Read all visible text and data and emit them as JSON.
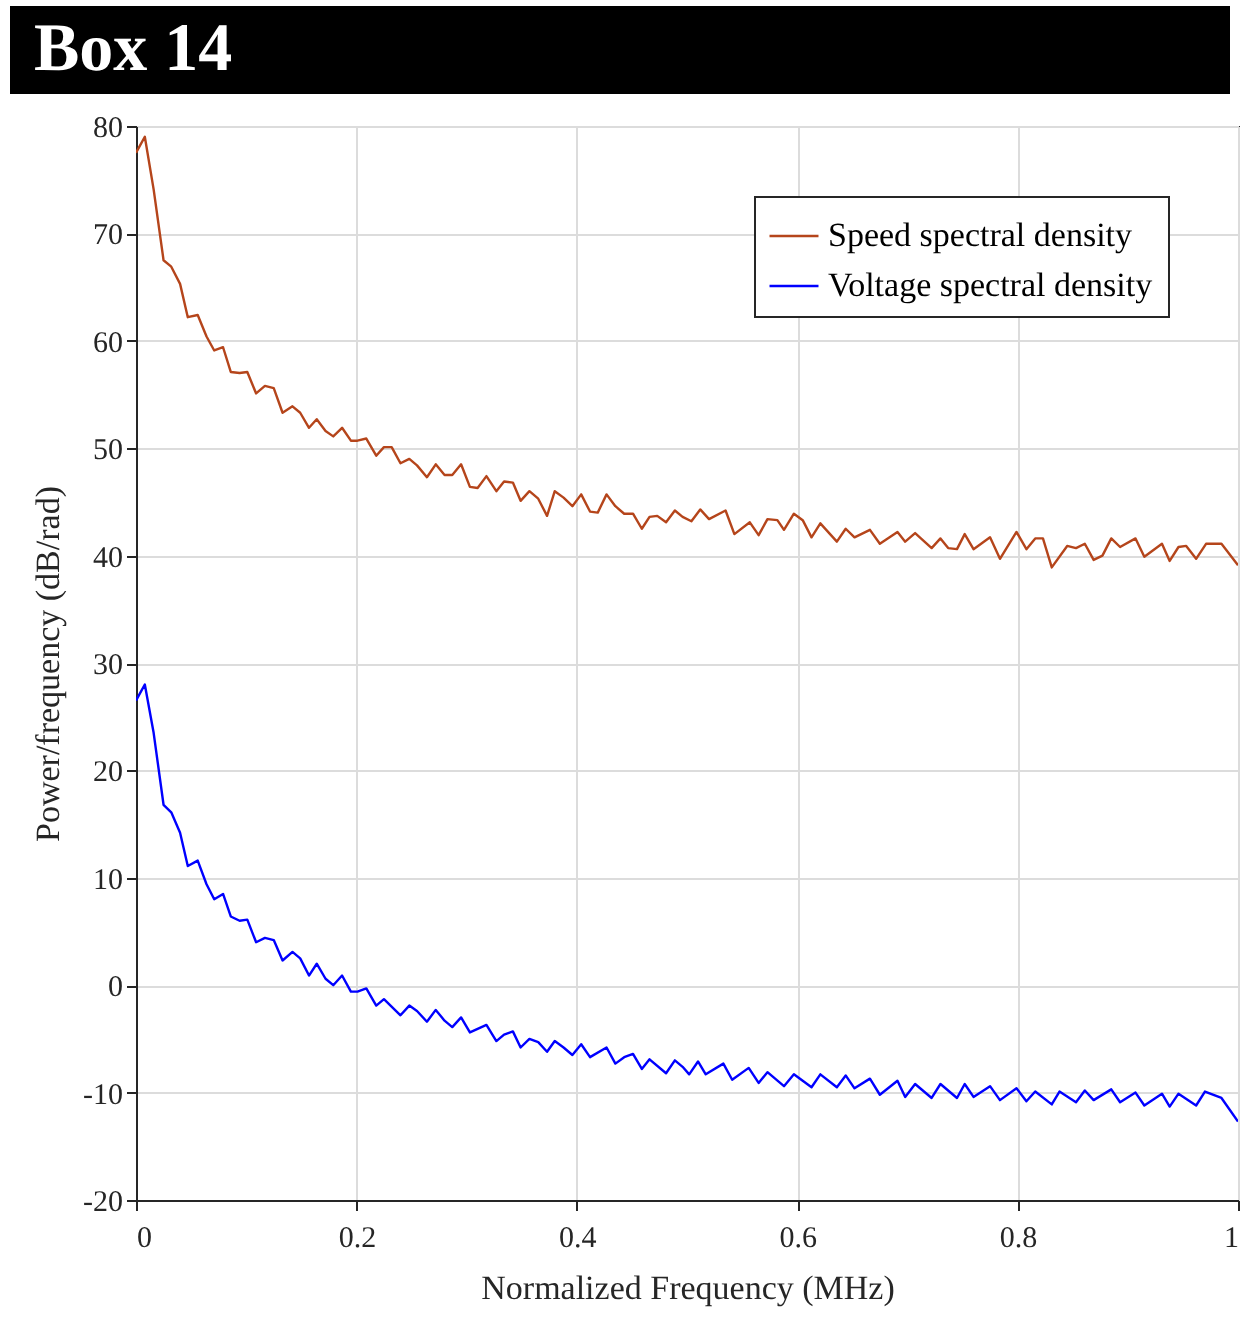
{
  "chart_data": {
    "type": "line",
    "title": "Box 14",
    "xlabel": "Normalized Frequency  (MHz)",
    "ylabel": "Power/frequency (dB/rad)",
    "xlim": [
      0,
      1
    ],
    "xticks": [
      0,
      0.2,
      0.4,
      0.6,
      0.8,
      1
    ],
    "ylim": [
      -20,
      80
    ],
    "yticks": [
      -20,
      -10,
      0,
      10,
      20,
      30,
      40,
      50,
      60,
      70,
      80
    ],
    "grid": true,
    "legend": "top right",
    "line_style": "solid",
    "marker": "none",
    "series": [
      {
        "name": "Speed spectral density",
        "color": "#b5451b",
        "x": [
          0,
          0.008,
          0.016,
          0.025,
          0.032,
          0.04,
          0.047,
          0.056,
          0.064,
          0.071,
          0.079,
          0.086,
          0.094,
          0.101,
          0.109,
          0.117,
          0.125,
          0.133,
          0.142,
          0.149,
          0.157,
          0.164,
          0.172,
          0.179,
          0.187,
          0.195,
          0.201,
          0.209,
          0.218,
          0.225,
          0.232,
          0.24,
          0.248,
          0.255,
          0.264,
          0.272,
          0.28,
          0.287,
          0.295,
          0.303,
          0.31,
          0.318,
          0.327,
          0.334,
          0.342,
          0.349,
          0.357,
          0.365,
          0.373,
          0.38,
          0.388,
          0.396,
          0.404,
          0.412,
          0.419,
          0.427,
          0.435,
          0.443,
          0.451,
          0.459,
          0.466,
          0.473,
          0.481,
          0.489,
          0.496,
          0.504,
          0.512,
          0.52,
          0.535,
          0.543,
          0.557,
          0.565,
          0.573,
          0.582,
          0.588,
          0.597,
          0.605,
          0.613,
          0.621,
          0.636,
          0.644,
          0.652,
          0.666,
          0.675,
          0.691,
          0.698,
          0.707,
          0.722,
          0.73,
          0.737,
          0.745,
          0.752,
          0.76,
          0.775,
          0.784,
          0.799,
          0.808,
          0.816,
          0.823,
          0.831,
          0.845,
          0.853,
          0.861,
          0.869,
          0.877,
          0.885,
          0.893,
          0.907,
          0.915,
          0.931,
          0.938,
          0.946,
          0.953,
          0.962,
          0.971,
          0.985,
          1
        ],
        "values": [
          77.5,
          79,
          74.1,
          67.5,
          66.9,
          65.3,
          62.2,
          62.4,
          60.4,
          59.1,
          59.4,
          57.1,
          57,
          57.1,
          55.1,
          55.8,
          55.6,
          53.3,
          53.9,
          53.3,
          51.9,
          52.7,
          51.6,
          51.1,
          51.9,
          50.7,
          50.7,
          50.9,
          49.3,
          50.1,
          50.1,
          48.6,
          49,
          48.4,
          47.3,
          48.5,
          47.5,
          47.5,
          48.5,
          46.4,
          46.3,
          47.4,
          46,
          46.9,
          46.8,
          45.1,
          46,
          45.3,
          43.7,
          46,
          45.4,
          44.6,
          45.7,
          44.1,
          44,
          45.7,
          44.6,
          43.9,
          43.9,
          42.5,
          43.6,
          43.7,
          43.1,
          44.2,
          43.6,
          43.2,
          44.3,
          43.4,
          44.2,
          42,
          43.1,
          41.9,
          43.4,
          43.3,
          42.4,
          43.9,
          43.3,
          41.7,
          43,
          41.3,
          42.5,
          41.7,
          42.4,
          41.1,
          42.2,
          41.3,
          42.1,
          40.7,
          41.6,
          40.7,
          40.6,
          42,
          40.6,
          41.7,
          39.7,
          42.2,
          40.6,
          41.6,
          41.6,
          38.9,
          40.9,
          40.7,
          41.1,
          39.6,
          40,
          41.6,
          40.8,
          41.6,
          39.9,
          41.1,
          39.5,
          40.8,
          40.9,
          39.7,
          41.1,
          41.1,
          39.1
        ]
      },
      {
        "name": "Voltage spectral density",
        "color": "#0000ff",
        "x": [
          0,
          0.008,
          0.016,
          0.025,
          0.032,
          0.04,
          0.047,
          0.056,
          0.064,
          0.071,
          0.079,
          0.086,
          0.094,
          0.101,
          0.109,
          0.117,
          0.125,
          0.133,
          0.142,
          0.149,
          0.157,
          0.164,
          0.172,
          0.179,
          0.187,
          0.195,
          0.201,
          0.209,
          0.218,
          0.225,
          0.24,
          0.248,
          0.255,
          0.264,
          0.272,
          0.28,
          0.287,
          0.295,
          0.303,
          0.318,
          0.327,
          0.334,
          0.342,
          0.349,
          0.357,
          0.365,
          0.373,
          0.38,
          0.388,
          0.396,
          0.404,
          0.412,
          0.427,
          0.435,
          0.443,
          0.451,
          0.459,
          0.466,
          0.481,
          0.489,
          0.496,
          0.502,
          0.51,
          0.517,
          0.533,
          0.541,
          0.556,
          0.565,
          0.573,
          0.588,
          0.597,
          0.613,
          0.621,
          0.636,
          0.644,
          0.652,
          0.666,
          0.675,
          0.691,
          0.698,
          0.707,
          0.722,
          0.73,
          0.745,
          0.752,
          0.76,
          0.775,
          0.784,
          0.799,
          0.808,
          0.816,
          0.831,
          0.838,
          0.853,
          0.861,
          0.869,
          0.885,
          0.893,
          0.907,
          0.915,
          0.931,
          0.938,
          0.946,
          0.962,
          0.97,
          0.985,
          1
        ],
        "values": [
          26.5,
          28,
          23.5,
          16.8,
          16.1,
          14.2,
          11.1,
          11.6,
          9.4,
          8,
          8.5,
          6.4,
          6,
          6.1,
          4,
          4.4,
          4.2,
          2.3,
          3.1,
          2.5,
          0.9,
          2,
          0.6,
          0,
          0.9,
          -0.6,
          -0.6,
          -0.3,
          -1.9,
          -1.3,
          -2.8,
          -1.9,
          -2.4,
          -3.4,
          -2.3,
          -3.3,
          -3.9,
          -3,
          -4.4,
          -3.7,
          -5.2,
          -4.6,
          -4.3,
          -5.8,
          -5,
          -5.3,
          -6.2,
          -5.2,
          -5.8,
          -6.5,
          -5.5,
          -6.7,
          -5.8,
          -7.3,
          -6.7,
          -6.4,
          -7.8,
          -6.9,
          -8.2,
          -7,
          -7.6,
          -8.3,
          -7.1,
          -8.3,
          -7.3,
          -8.8,
          -7.7,
          -9.1,
          -8.1,
          -9.4,
          -8.3,
          -9.5,
          -8.3,
          -9.5,
          -8.4,
          -9.6,
          -8.7,
          -10.2,
          -8.9,
          -10.4,
          -9.2,
          -10.5,
          -9.2,
          -10.5,
          -9.2,
          -10.4,
          -9.4,
          -10.7,
          -9.6,
          -10.8,
          -9.9,
          -11.1,
          -9.9,
          -10.9,
          -9.8,
          -10.7,
          -9.7,
          -10.9,
          -10,
          -11.2,
          -10.1,
          -11.3,
          -10.1,
          -11.2,
          -9.9,
          -10.5,
          -12.7
        ]
      }
    ]
  }
}
